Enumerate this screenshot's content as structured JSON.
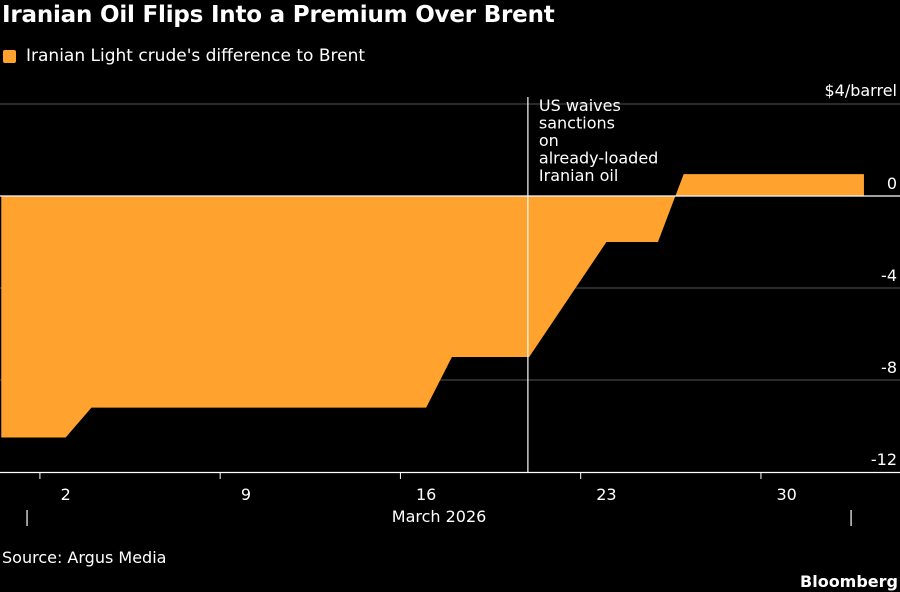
{
  "title": "Iranian Oil Flips Into a Premium Over Brent",
  "source": "Source: Argus Media",
  "brand": "Bloomberg",
  "colors": {
    "background": "#000000",
    "series": "#ffa22e",
    "text": "#ffffff",
    "grid": "#555555",
    "axis": "#ffffff"
  },
  "chart_data": {
    "type": "area",
    "title": "Iranian Oil Flips Into a Premium Over Brent",
    "legend": [
      "Iranian Light crude's difference to Brent"
    ],
    "legend_position": "top-left",
    "ylabel": "$4/barrel",
    "xlabel": "March 2026",
    "ylim": [
      -12,
      4
    ],
    "yticks": [
      0,
      -4,
      -8,
      -12
    ],
    "xlim": [
      -0.55,
      34.4
    ],
    "xticks": [
      {
        "value": 2,
        "label": "2"
      },
      {
        "value": 9,
        "label": "9"
      },
      {
        "value": 16,
        "label": "16"
      },
      {
        "value": 23,
        "label": "23"
      },
      {
        "value": 30,
        "label": "30"
      }
    ],
    "grid": true,
    "series": [
      {
        "name": "Iranian Light crude's difference to Brent",
        "x": [
          -0.5,
          2,
          3,
          16,
          17,
          20,
          23,
          25,
          26,
          33
        ],
        "values": [
          -10.5,
          -10.5,
          -9.2,
          -9.2,
          -7.0,
          -7.0,
          -2.0,
          -2.0,
          0.95,
          0.95
        ]
      }
    ],
    "annotations": [
      {
        "x": 19.95,
        "lines": [
          "US waives",
          "sanctions",
          "on",
          "already-loaded",
          "Iranian oil"
        ]
      }
    ]
  }
}
